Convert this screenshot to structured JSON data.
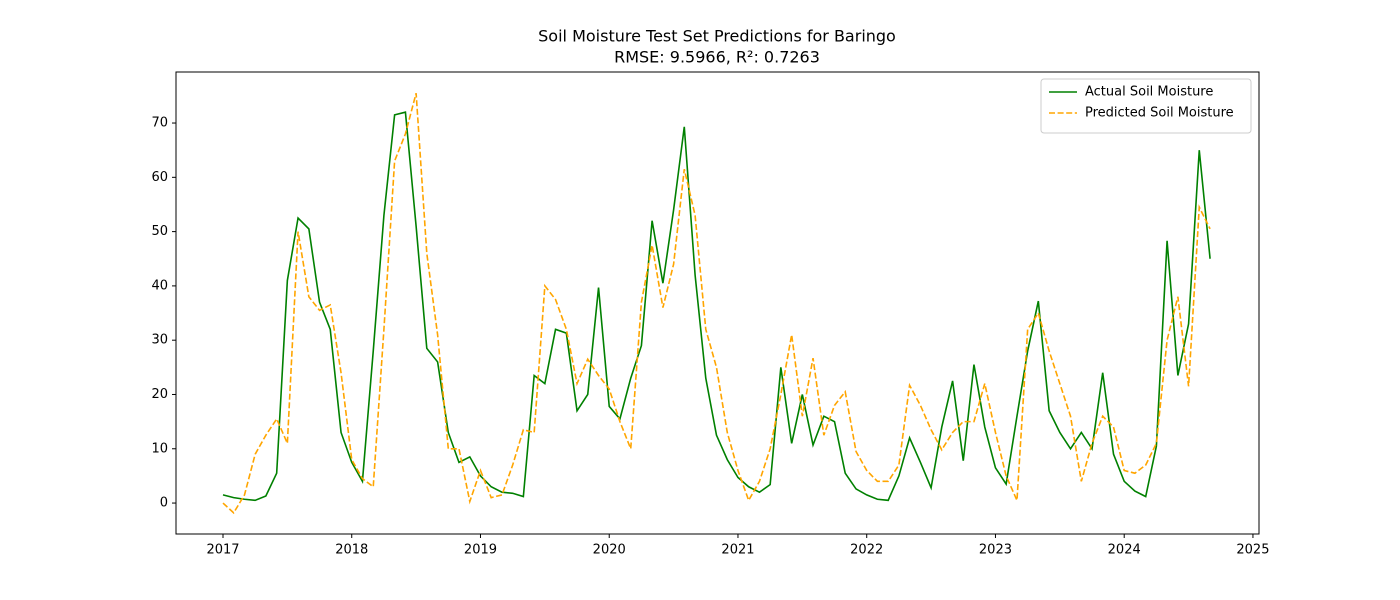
{
  "chart_data": {
    "type": "line",
    "title": "Soil Moisture Test Set Predictions for Baringo",
    "subtitle": "RMSE: 9.5966, R²: 0.7263",
    "x": [
      2017,
      2017.083,
      2017.167,
      2017.25,
      2017.333,
      2017.417,
      2017.5,
      2017.583,
      2017.667,
      2017.75,
      2017.833,
      2017.917,
      2018,
      2018.083,
      2018.167,
      2018.25,
      2018.333,
      2018.417,
      2018.5,
      2018.583,
      2018.667,
      2018.75,
      2018.833,
      2018.917,
      2019,
      2019.083,
      2019.167,
      2019.25,
      2019.333,
      2019.417,
      2019.5,
      2019.583,
      2019.667,
      2019.75,
      2019.833,
      2019.917,
      2020,
      2020.083,
      2020.167,
      2020.25,
      2020.333,
      2020.417,
      2020.5,
      2020.583,
      2020.667,
      2020.75,
      2020.833,
      2020.917,
      2021,
      2021.083,
      2021.167,
      2021.25,
      2021.333,
      2021.417,
      2021.5,
      2021.583,
      2021.667,
      2021.75,
      2021.833,
      2021.917,
      2022,
      2022.083,
      2022.167,
      2022.25,
      2022.333,
      2022.417,
      2022.5,
      2022.583,
      2022.667,
      2022.75,
      2022.833,
      2022.917,
      2023,
      2023.083,
      2023.167,
      2023.25,
      2023.333,
      2023.417,
      2023.5,
      2023.583,
      2023.667,
      2023.75,
      2023.833,
      2023.917,
      2024,
      2024.083,
      2024.167,
      2024.25,
      2024.333,
      2024.417,
      2024.5,
      2024.583,
      2024.667
    ],
    "series": [
      {
        "name": "Actual Soil Moisture",
        "color": "#008000",
        "linestyle": "solid",
        "values": [
          1.5,
          1,
          0.7,
          0.5,
          1.3,
          5.5,
          41,
          52.5,
          50.5,
          37,
          32,
          13,
          7.5,
          4,
          28,
          53,
          71.5,
          72,
          51,
          28.5,
          26,
          13,
          7.5,
          8.5,
          5,
          3,
          2,
          1.8,
          1.2,
          23.5,
          22,
          32,
          31.3,
          17,
          20,
          39.7,
          17.8,
          15.5,
          23,
          29,
          52,
          40.5,
          54,
          69.3,
          42,
          23,
          12.5,
          8,
          4.7,
          3,
          2,
          3.4,
          25,
          11,
          20,
          10.7,
          16,
          15,
          5.5,
          2.6,
          1.5,
          0.7,
          0.5,
          5,
          12,
          7.5,
          2.8,
          14,
          22.5,
          7.8,
          25.5,
          14,
          6.5,
          3.5,
          16,
          28,
          37.2,
          17,
          13,
          10,
          13,
          10,
          24,
          9,
          4,
          2.2,
          1.2,
          10.5,
          48.3,
          23.5,
          33,
          65,
          45
        ]
      },
      {
        "name": "Predicted Soil Moisture",
        "color": "#ffa500",
        "linestyle": "dashed",
        "values": [
          0,
          -1.8,
          1.5,
          9,
          12.5,
          15.5,
          11,
          50,
          38,
          35.5,
          36.5,
          24,
          8,
          4.5,
          3,
          32,
          63,
          68,
          75.5,
          46,
          31,
          10,
          10,
          0.3,
          6,
          1,
          1.5,
          7,
          13.5,
          13,
          40,
          37.5,
          32,
          22,
          26.5,
          23.5,
          21,
          15,
          10,
          37,
          47.5,
          36,
          44,
          61.5,
          53,
          32,
          25,
          13,
          6,
          0.5,
          4,
          10,
          20,
          31,
          16,
          26.7,
          12.5,
          18,
          20.5,
          9.5,
          6,
          4,
          4,
          7,
          21.7,
          18,
          13.5,
          9.8,
          13,
          15,
          15,
          22,
          13,
          5,
          0.5,
          32,
          35,
          28,
          22,
          16,
          4,
          11,
          16,
          14,
          6,
          5.5,
          7,
          11,
          30,
          38,
          21.5,
          54.5,
          50.5
        ]
      }
    ],
    "xlim": [
      2016.635,
      2025.047
    ],
    "xticks": [
      2017,
      2018,
      2019,
      2020,
      2021,
      2022,
      2023,
      2024,
      2025
    ],
    "ylim": [
      -5.7,
      79.4
    ],
    "yticks": [
      0,
      10,
      20,
      30,
      40,
      50,
      60,
      70
    ],
    "grid": false,
    "legend": "upper right"
  }
}
